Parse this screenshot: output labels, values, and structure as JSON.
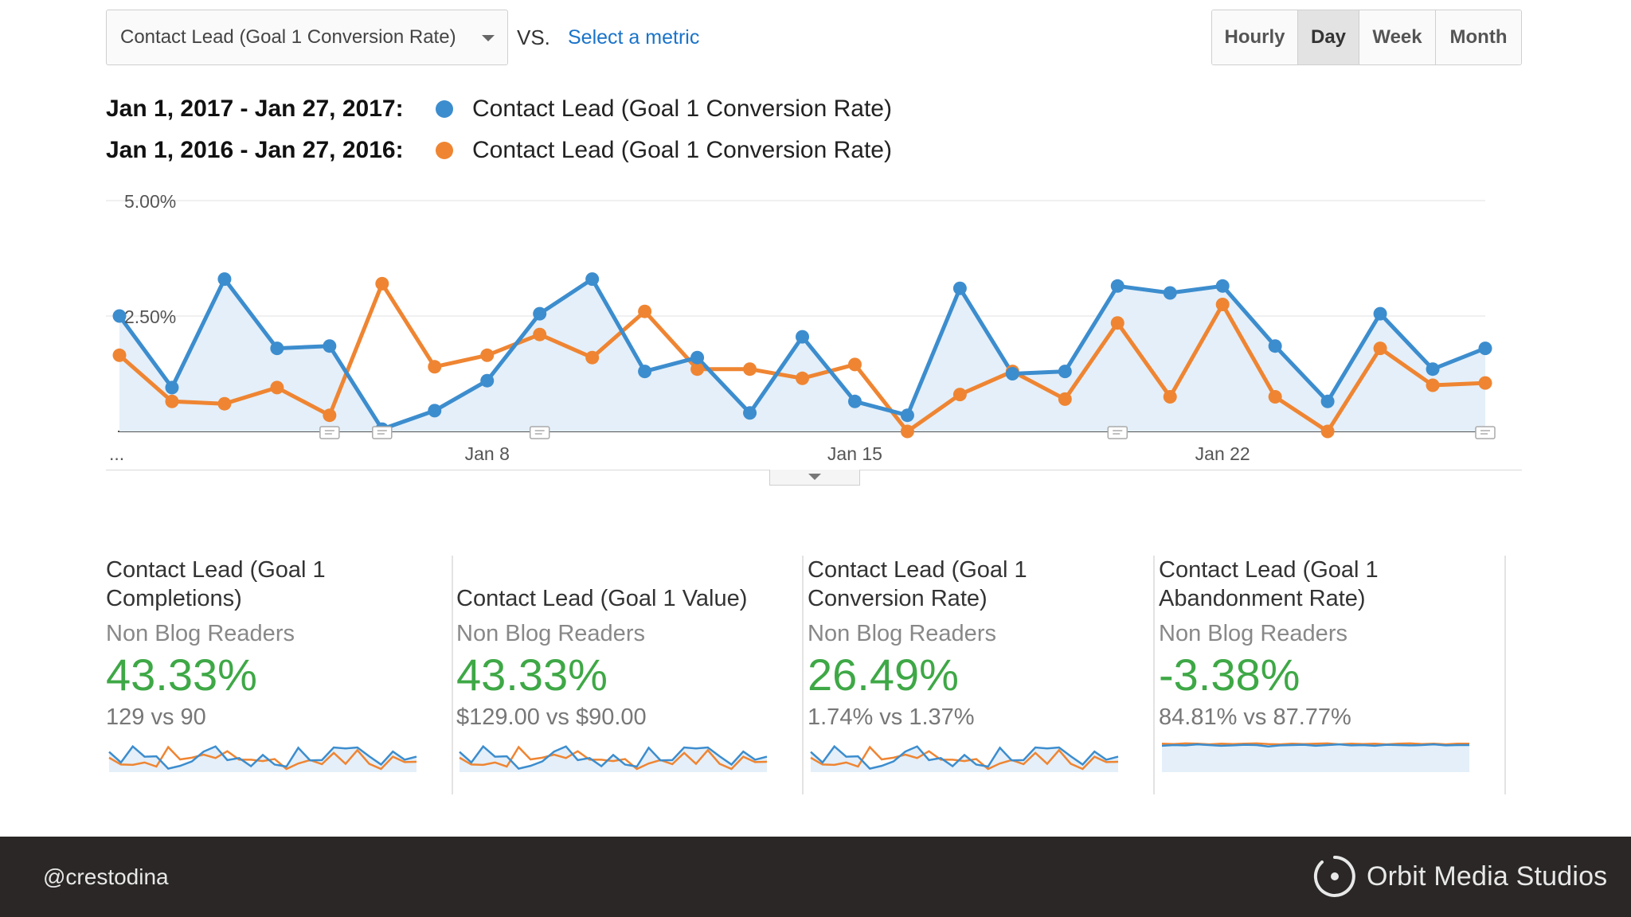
{
  "toolbar": {
    "metric_select_value": "Contact Lead (Goal 1 Conversion Rate)",
    "vs_label": "VS.",
    "select_metric_link": "Select a metric",
    "granularity": [
      {
        "label": "Hourly",
        "active": false
      },
      {
        "label": "Day",
        "active": true
      },
      {
        "label": "Week",
        "active": false
      },
      {
        "label": "Month",
        "active": false
      }
    ]
  },
  "legend": [
    {
      "range": "Jan 1, 2017 - Jan 27, 2017:",
      "metric": "Contact Lead (Goal 1 Conversion Rate)",
      "color": "#3c8dce"
    },
    {
      "range": "Jan 1, 2016 - Jan 27, 2016:",
      "metric": "Contact Lead (Goal 1 Conversion Rate)",
      "color": "#ef8532"
    }
  ],
  "chart_data": {
    "type": "line",
    "title": "",
    "xlabel": "",
    "ylabel": "",
    "ylim": [
      0,
      5
    ],
    "y_ticks": [
      {
        "value": 5,
        "label": "5.00%"
      },
      {
        "value": 2.5,
        "label": "2.50%"
      }
    ],
    "x_ticks": [
      {
        "index": 0,
        "label": "..."
      },
      {
        "index": 7,
        "label": "Jan 8"
      },
      {
        "index": 14,
        "label": "Jan 15"
      },
      {
        "index": 21,
        "label": "Jan 22"
      }
    ],
    "annotation_days": [
      4,
      5,
      8,
      19,
      26
    ],
    "series": [
      {
        "name": "Jan 1, 2017 - Jan 27, 2017",
        "color": "#3c8dce",
        "fill": true,
        "values": [
          2.5,
          0.95,
          3.3,
          1.8,
          1.85,
          0.05,
          0.45,
          1.1,
          2.55,
          3.3,
          1.3,
          1.6,
          0.4,
          2.05,
          0.65,
          0.35,
          3.1,
          1.25,
          1.3,
          3.15,
          3.0,
          3.15,
          1.85,
          0.65,
          2.55,
          1.35,
          1.8
        ]
      },
      {
        "name": "Jan 1, 2016 - Jan 27, 2016",
        "color": "#ef8532",
        "fill": false,
        "values": [
          1.65,
          0.65,
          0.6,
          0.95,
          0.35,
          3.2,
          1.4,
          1.65,
          2.1,
          1.6,
          2.6,
          1.35,
          1.35,
          1.15,
          1.45,
          0.0,
          0.8,
          1.3,
          0.7,
          2.35,
          0.75,
          2.75,
          0.75,
          0.0,
          1.8,
          1.0,
          1.05
        ]
      }
    ]
  },
  "scorecards": [
    {
      "title": "Contact Lead (Goal 1 Completions)",
      "segment": "Non Blog Readers",
      "value": "43.33%",
      "compare": "129 vs 90",
      "spark_a": [
        2.5,
        0.95,
        3.3,
        1.8,
        1.85,
        0.05,
        0.45,
        1.1,
        2.55,
        3.3,
        1.3,
        1.6,
        0.4,
        2.05,
        0.65,
        0.35,
        3.1,
        1.25,
        1.3,
        3.15,
        3.0,
        3.15,
        1.85,
        0.65,
        2.55,
        1.35,
        1.8
      ],
      "spark_b": [
        1.65,
        0.65,
        0.6,
        0.95,
        0.35,
        3.2,
        1.4,
        1.65,
        2.1,
        1.6,
        2.6,
        1.35,
        1.35,
        1.15,
        1.45,
        0.0,
        0.8,
        1.3,
        0.7,
        2.35,
        0.75,
        2.75,
        0.75,
        0.0,
        1.8,
        1.0,
        1.05
      ]
    },
    {
      "title": "Contact Lead (Goal 1 Value)",
      "segment": "Non Blog Readers",
      "value": "43.33%",
      "compare": "$129.00 vs $90.00",
      "spark_a": [
        2.5,
        0.95,
        3.3,
        1.8,
        1.85,
        0.05,
        0.45,
        1.1,
        2.55,
        3.3,
        1.3,
        1.6,
        0.4,
        2.05,
        0.65,
        0.35,
        3.1,
        1.25,
        1.3,
        3.15,
        3.0,
        3.15,
        1.85,
        0.65,
        2.55,
        1.35,
        1.8
      ],
      "spark_b": [
        1.65,
        0.65,
        0.6,
        0.95,
        0.35,
        3.2,
        1.4,
        1.65,
        2.1,
        1.6,
        2.6,
        1.35,
        1.35,
        1.15,
        1.45,
        0.0,
        0.8,
        1.3,
        0.7,
        2.35,
        0.75,
        2.75,
        0.75,
        0.0,
        1.8,
        1.0,
        1.05
      ]
    },
    {
      "title": "Contact Lead (Goal 1 Conversion Rate)",
      "segment": "Non Blog Readers",
      "value": "26.49%",
      "compare": "1.74% vs 1.37%",
      "spark_a": [
        2.5,
        0.95,
        3.3,
        1.8,
        1.85,
        0.05,
        0.45,
        1.1,
        2.55,
        3.3,
        1.3,
        1.6,
        0.4,
        2.05,
        0.65,
        0.35,
        3.1,
        1.25,
        1.3,
        3.15,
        3.0,
        3.15,
        1.85,
        0.65,
        2.55,
        1.35,
        1.8
      ],
      "spark_b": [
        1.65,
        0.65,
        0.6,
        0.95,
        0.35,
        3.2,
        1.4,
        1.65,
        2.1,
        1.6,
        2.6,
        1.35,
        1.35,
        1.15,
        1.45,
        0.0,
        0.8,
        1.3,
        0.7,
        2.35,
        0.75,
        2.75,
        0.75,
        0.0,
        1.8,
        1.0,
        1.05
      ]
    },
    {
      "title": "Contact Lead (Goal 1 Abandonment Rate)",
      "segment": "Non Blog Readers",
      "value": "-3.38%",
      "compare": "84.81% vs 87.77%",
      "spark_a": [
        3.4,
        3.5,
        3.45,
        3.6,
        3.5,
        3.4,
        3.45,
        3.55,
        3.5,
        3.3,
        3.45,
        3.5,
        3.55,
        3.4,
        3.5,
        3.6,
        3.45,
        3.5,
        3.4,
        3.55,
        3.5,
        3.45,
        3.5,
        3.6,
        3.45,
        3.5,
        3.5
      ],
      "spark_b": [
        3.7,
        3.65,
        3.75,
        3.7,
        3.6,
        3.7,
        3.65,
        3.7,
        3.75,
        3.65,
        3.6,
        3.7,
        3.65,
        3.7,
        3.75,
        3.6,
        3.7,
        3.65,
        3.7,
        3.6,
        3.7,
        3.75,
        3.65,
        3.7,
        3.6,
        3.7,
        3.7
      ]
    }
  ],
  "footer": {
    "handle": "@crestodina",
    "brand": "Orbit Media Studios"
  }
}
